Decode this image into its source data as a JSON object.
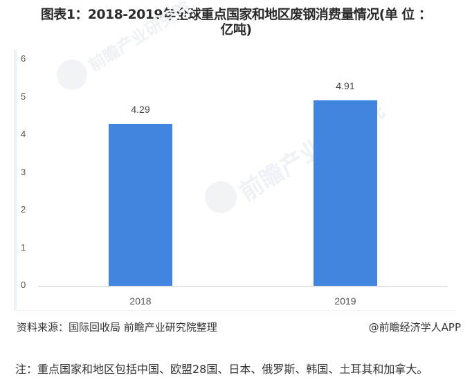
{
  "title": {
    "line1": "图表1：2018-2019年全球重点国家和地区废钢消费量情况(单 位 ：",
    "line2": "亿吨)"
  },
  "watermark": {
    "text": "前瞻产业研究院",
    "icon": "qianzhan-logo-icon"
  },
  "colors": {
    "bar": "#4185e0",
    "frame_accent": "#eaf1fa",
    "axis": "#e3e3e3"
  },
  "chart_data": {
    "type": "bar",
    "title": "图表1：2018-2019年全球重点国家和地区废钢消费量情况(单 位 ：亿吨)",
    "categories": [
      "2018",
      "2019"
    ],
    "values": [
      4.29,
      4.91
    ],
    "value_labels": [
      "4.29",
      "4.91"
    ],
    "xlabel": "",
    "ylabel": "",
    "ylim": [
      0,
      6
    ],
    "yticks": [
      "0",
      "1",
      "2",
      "3",
      "4",
      "5",
      "6"
    ],
    "grid": false,
    "legend": null
  },
  "footer": {
    "source": "资料来源：国际回收局 前瞻产业研究院整理",
    "credit": "@前瞻经济学人APP",
    "note": "注：重点国家和地区包括中国、欧盟28国、日本、俄罗斯、韩国、土耳其和加拿大。"
  }
}
